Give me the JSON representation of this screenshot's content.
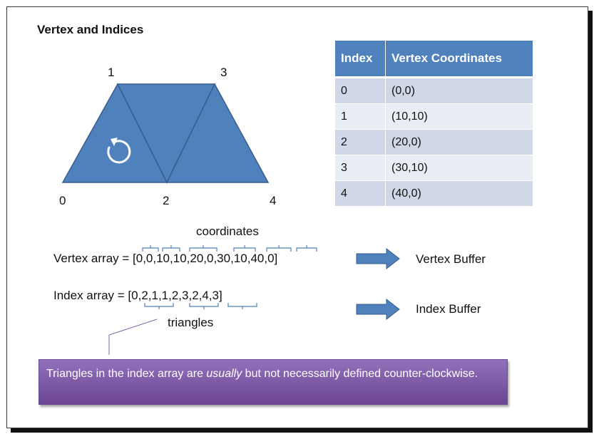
{
  "slide": {
    "title": "Vertex and Indices"
  },
  "diagram": {
    "vertex_labels": [
      "0",
      "1",
      "2",
      "3",
      "4"
    ],
    "rotation_icon": "counter-clockwise-arrow-icon",
    "fill_color": "#4f81bd",
    "edge_color": "#385d8a"
  },
  "table": {
    "headers": [
      "Index",
      "Vertex Coordinates"
    ],
    "rows": [
      [
        "0",
        "(0,0)"
      ],
      [
        "1",
        "(10,10)"
      ],
      [
        "2",
        "(20,0)"
      ],
      [
        "3",
        "(30,10)"
      ],
      [
        "4",
        "(40,0)"
      ]
    ],
    "header_color": "#4f81bd",
    "row_colors": [
      "#d0d8e8",
      "#e9edf4"
    ]
  },
  "arrays": {
    "coordinates_label": "coordinates",
    "vertex_array": "Vertex array = [0,0,10,10,20,0,30,10,40,0]",
    "index_array": "Index array = [0,2,1,1,2,3,2,4,3]",
    "triangles_label": "triangles",
    "vertex_buffer": "Vertex Buffer",
    "index_buffer": "Index Buffer"
  },
  "note": {
    "text_before": "Triangles in the index array are ",
    "text_emphasis": "usually",
    "text_after": " but not necessarily defined counter-clockwise.",
    "color": "#8064a2"
  }
}
